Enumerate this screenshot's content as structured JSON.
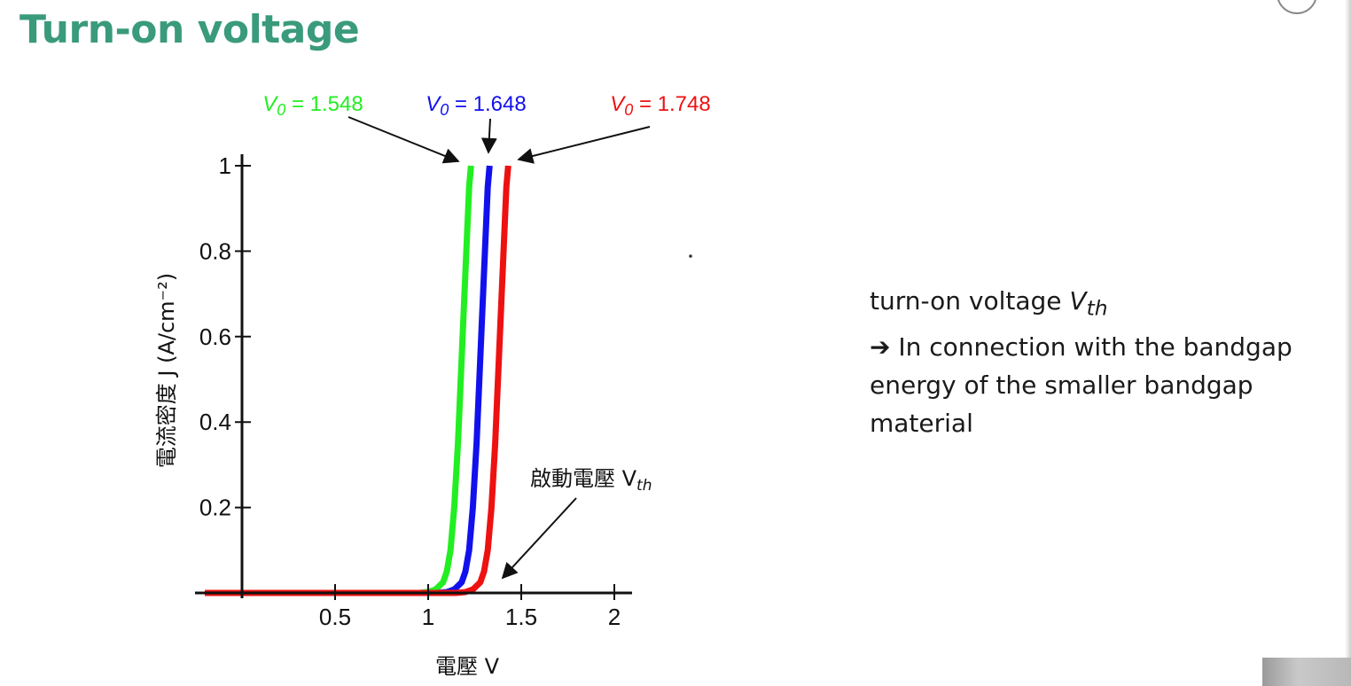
{
  "slide": {
    "title": "Turn-on voltage"
  },
  "notes": {
    "line1_text": "turn-on voltage ",
    "line1_var": "V",
    "line1_sub": "th",
    "arrow_glyph": "➔",
    "line2_text": " In connection with the bandgap energy of the smaller bandgap material"
  },
  "chart_data": {
    "type": "line",
    "title": "",
    "xlabel": "電壓 V",
    "ylabel": "電流密度 J (A/cm⁻²)",
    "xlim": [
      0,
      2.1
    ],
    "ylim": [
      0,
      1
    ],
    "x_ticks": [
      "0.5",
      "1",
      "1.5",
      "2"
    ],
    "y_ticks": [
      "0.2",
      "0.4",
      "0.6",
      "0.8",
      "1"
    ],
    "annotation": {
      "text": "啟動電壓 V",
      "sub": "th"
    },
    "series": [
      {
        "name": "V0 = 1.548",
        "label_var": "V",
        "label_sub": "0",
        "label_value": "= 1.548",
        "color": "#22ee22",
        "points": [
          [
            -0.2,
            0
          ],
          [
            0.95,
            0
          ],
          [
            1.0,
            0.002
          ],
          [
            1.04,
            0.008
          ],
          [
            1.08,
            0.025
          ],
          [
            1.1,
            0.05
          ],
          [
            1.12,
            0.1
          ],
          [
            1.14,
            0.2
          ],
          [
            1.16,
            0.35
          ],
          [
            1.18,
            0.55
          ],
          [
            1.2,
            0.75
          ],
          [
            1.22,
            0.95
          ],
          [
            1.23,
            1.0
          ]
        ]
      },
      {
        "name": "V0 = 1.648",
        "label_var": "V",
        "label_sub": "0",
        "label_value": "= 1.648",
        "color": "#1111ee",
        "points": [
          [
            -0.2,
            0
          ],
          [
            1.05,
            0
          ],
          [
            1.1,
            0.002
          ],
          [
            1.14,
            0.008
          ],
          [
            1.18,
            0.025
          ],
          [
            1.2,
            0.05
          ],
          [
            1.22,
            0.1
          ],
          [
            1.24,
            0.2
          ],
          [
            1.26,
            0.35
          ],
          [
            1.28,
            0.55
          ],
          [
            1.3,
            0.75
          ],
          [
            1.32,
            0.95
          ],
          [
            1.33,
            1.0
          ]
        ]
      },
      {
        "name": "V0 = 1.748",
        "label_var": "V",
        "label_sub": "0",
        "label_value": "= 1.748",
        "color": "#ee1111",
        "points": [
          [
            -0.2,
            0
          ],
          [
            1.15,
            0
          ],
          [
            1.2,
            0.002
          ],
          [
            1.24,
            0.008
          ],
          [
            1.28,
            0.025
          ],
          [
            1.3,
            0.05
          ],
          [
            1.32,
            0.1
          ],
          [
            1.34,
            0.2
          ],
          [
            1.36,
            0.35
          ],
          [
            1.38,
            0.55
          ],
          [
            1.4,
            0.75
          ],
          [
            1.42,
            0.95
          ],
          [
            1.43,
            1.0
          ]
        ]
      }
    ],
    "grid": false,
    "legend": "labels above plot with arrows"
  }
}
